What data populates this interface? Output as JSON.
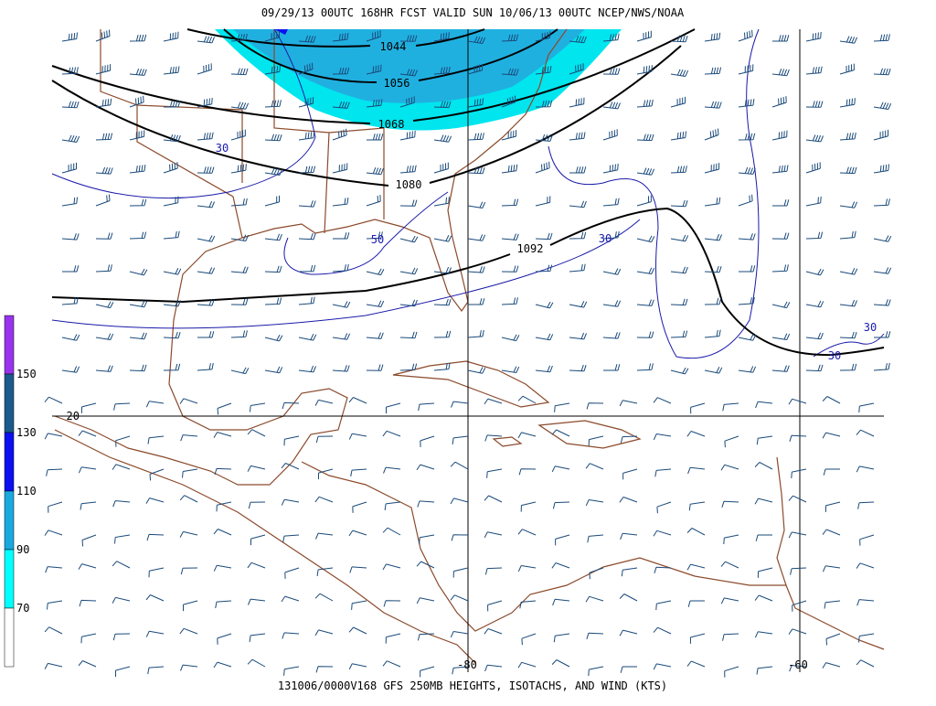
{
  "header": "09/29/13 00UTC  168HR  FCST VALID SUN 10/06/13 00UTC  NCEP/NWS/NOAA",
  "footer": "131006/0000V168 GFS 250MB HEIGHTS, ISOTACHS, AND WIND (KTS)",
  "legend": [
    {
      "label": null,
      "color": "#9933ee"
    },
    {
      "label": 150,
      "color": "#1a5a8c"
    },
    {
      "label": 130,
      "color": "#0a10f0"
    },
    {
      "label": 110,
      "color": "#1aa8e0"
    },
    {
      "label": 90,
      "color": "#00ffff"
    },
    {
      "label": 70,
      "color": "#ffffff"
    }
  ],
  "height_contours": [
    1044,
    1056,
    1068,
    1080,
    1092
  ],
  "isotach_labels": [
    30,
    50,
    30,
    30,
    30,
    30
  ],
  "grid_labels": {
    "lat": 20,
    "lon": [
      -80,
      -60
    ]
  }
}
